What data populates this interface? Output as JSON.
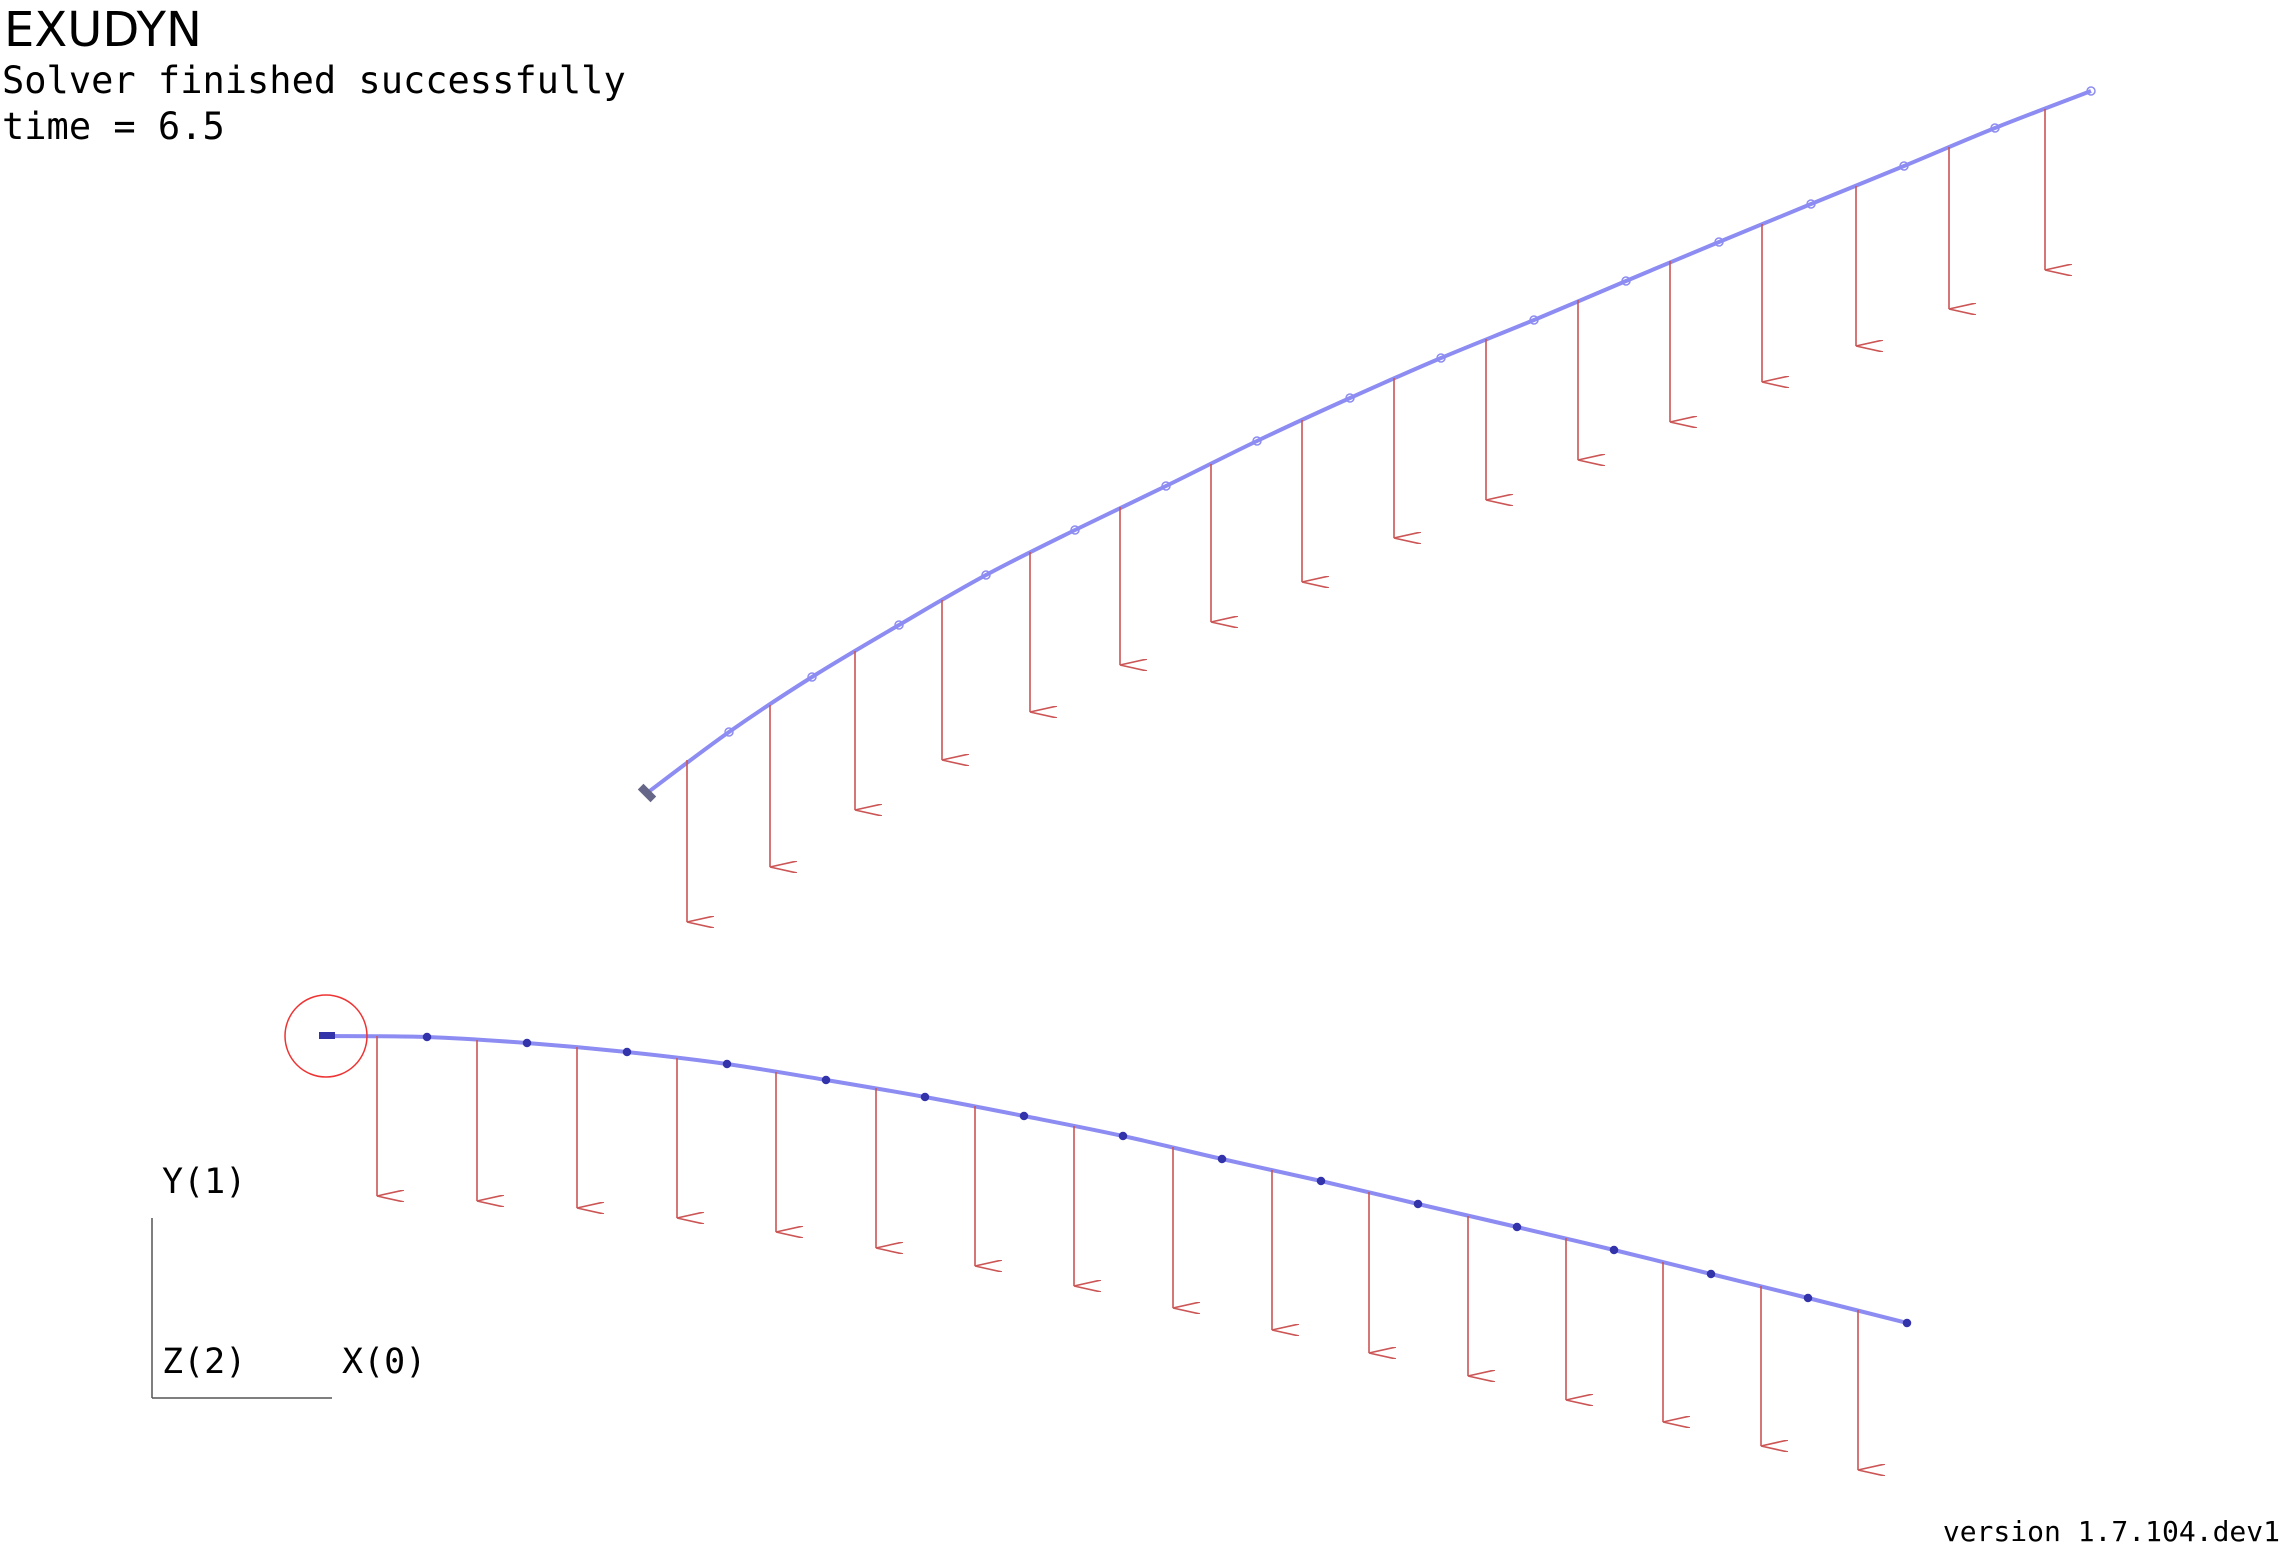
{
  "header": {
    "title": "EXUDYN",
    "status": "Solver finished successfully",
    "time_label": "time = 6.5"
  },
  "axes": {
    "y_label": "Y(1)",
    "z_label": "Z(2)",
    "x_label": "X(0)"
  },
  "footer": {
    "version": "version 1.7.104.dev1"
  },
  "colors": {
    "beam": "#8c8cf2",
    "node": "#3333aa",
    "load": "#cc5555",
    "ground": "#666688",
    "constraint": "#ee3333",
    "axes": "#555555"
  }
}
